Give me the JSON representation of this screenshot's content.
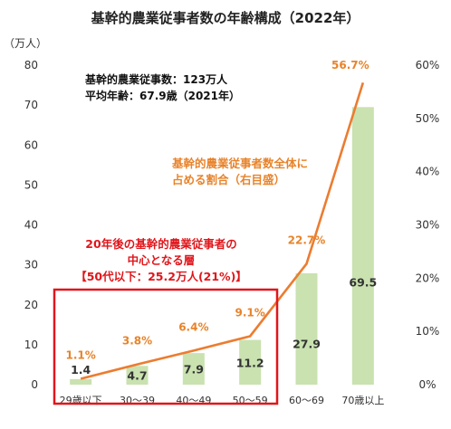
{
  "title": "基幹的農業従事者数の年齢構成（2022年）",
  "left_axis_unit": "（万人）",
  "summary": {
    "line1": "基幹的農業従事数：123万人",
    "line2": "平均年齢：67.9歳（2021年）"
  },
  "line_annotation": {
    "line1": "基幹的農業従事者数全体に",
    "line2": "占める割合（右目盛）"
  },
  "highlight_annotation": {
    "line1": "20年後の基幹的農業従事者の",
    "line2": "中心となる層",
    "line3": "【50代以下：25.2万人(21%)】"
  },
  "colors": {
    "bar": "#c9e2b0",
    "line": "#ec7c30",
    "highlight_box": "#e0161b",
    "text": "#333333"
  },
  "chart_data": {
    "type": "bar",
    "categories": [
      "29歳以下",
      "30～39",
      "40～49",
      "50～59",
      "60～69",
      "70歳以上"
    ],
    "series": [
      {
        "type": "bar",
        "axis": "left",
        "values": [
          1.4,
          4.7,
          7.9,
          11.2,
          27.9,
          69.5
        ],
        "labels": [
          "1.4",
          "4.7",
          "7.9",
          "11.2",
          "27.9",
          "69.5"
        ]
      },
      {
        "type": "line",
        "axis": "right",
        "name": "基幹的農業従事者数全体に占める割合（右目盛）",
        "values": [
          1.1,
          3.8,
          6.4,
          9.1,
          22.7,
          56.7
        ],
        "labels": [
          "1.1%",
          "3.8%",
          "6.4%",
          "9.1%",
          "22.7%",
          "56.7%"
        ]
      }
    ],
    "left_axis": {
      "ylim": [
        0,
        80
      ],
      "ticks": [
        "0",
        "10",
        "20",
        "30",
        "40",
        "50",
        "60",
        "70",
        "80"
      ]
    },
    "right_axis": {
      "ylim": [
        0,
        60
      ],
      "ticks": [
        "0%",
        "10%",
        "20%",
        "30%",
        "40%",
        "50%",
        "60%"
      ]
    },
    "grid": false,
    "legend": "none"
  }
}
